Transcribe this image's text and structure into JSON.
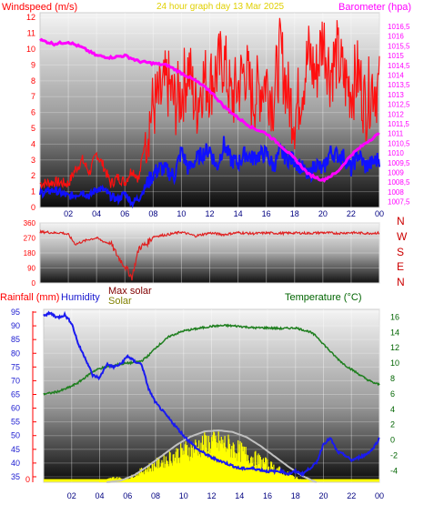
{
  "header": {
    "left_title": "Windspeed (m/s)",
    "center_title": "24 hour graph day   13 Mar 2025",
    "right_title": "Barometer (hpa)"
  },
  "colors": {
    "wind_avg": "#1010ff",
    "wind_gust": "#ff1010",
    "barometer": "#ff00ff",
    "direction": "#e02020",
    "humidity": "#1a1af0",
    "temperature": "#1f7f1f",
    "solar": "#ffff00",
    "max_solar": "#c0c0c0",
    "rainfall": "#ff2020",
    "title_yellow": "#e0d000",
    "rain_axis": "#ff0000",
    "temp_axis": "#006400"
  },
  "chart_data": [
    {
      "type": "line",
      "id": "wind-baro",
      "xlabel": "",
      "x_ticks": [
        "02",
        "04",
        "06",
        "08",
        "10",
        "12",
        "14",
        "16",
        "18",
        "20",
        "22",
        "00"
      ],
      "y_left_label": "Windspeed (m/s)",
      "y_left_ticks": [
        "12",
        "11",
        "10",
        "9",
        "8",
        "7",
        "6",
        "5",
        "4",
        "3",
        "2",
        "1",
        "0"
      ],
      "y_left_range": [
        0,
        12.3
      ],
      "y_right_label": "Barometer (hpa)",
      "y_right_ticks": [
        "1016,5",
        "1016",
        "1015,5",
        "1015",
        "1014,5",
        "1014",
        "1013,5",
        "1013",
        "1012,5",
        "1012",
        "1011,5",
        "1011",
        "1010,5",
        "1010",
        "1009,5",
        "1009",
        "1008,5",
        "1008",
        "1007,5"
      ],
      "y_right_range": [
        1007.2,
        1017.2
      ],
      "series": [
        {
          "key": "gust",
          "hours": [
            0,
            1,
            2,
            2.5,
            3,
            3.5,
            4,
            4.5,
            5,
            5.5,
            6,
            6.5,
            7,
            7.5,
            8,
            8.5,
            9,
            9.5,
            10,
            10.5,
            11,
            11.5,
            12,
            12.5,
            13,
            13.5,
            14,
            14.5,
            15,
            15.5,
            16,
            16.5,
            17,
            17.5,
            18,
            18.5,
            19,
            19.5,
            20,
            20.5,
            21,
            21.5,
            22,
            22.5,
            23,
            23.5,
            24
          ],
          "values": [
            1.5,
            1.6,
            1.5,
            2.4,
            3.0,
            2.2,
            3.4,
            2.6,
            1.5,
            1.9,
            1.6,
            2.4,
            1.8,
            4.8,
            6.4,
            6.8,
            7.9,
            6.6,
            7.2,
            8.9,
            6.3,
            8.1,
            7.9,
            8.6,
            9.4,
            6.8,
            7.6,
            8.8,
            6.9,
            7.5,
            8.1,
            6.8,
            9.9,
            7.2,
            5.8,
            7.6,
            9.6,
            8.3,
            10.9,
            8.6,
            9.6,
            8.1,
            7.5,
            8.5,
            6.4,
            7.9,
            7.4
          ]
        },
        {
          "key": "avg",
          "hours": [
            0,
            1,
            2,
            2.5,
            3,
            3.5,
            4,
            4.5,
            5,
            5.5,
            6,
            6.5,
            7,
            7.5,
            8,
            8.5,
            9,
            9.5,
            10,
            10.5,
            11,
            11.5,
            12,
            12.5,
            13,
            13.5,
            14,
            14.5,
            15,
            15.5,
            16,
            16.5,
            17,
            17.5,
            18,
            18.5,
            19,
            19.5,
            20,
            20.5,
            21,
            21.5,
            22,
            22.5,
            23,
            23.5,
            24
          ],
          "values": [
            0.9,
            1.1,
            0.7,
            0.8,
            1.0,
            0.7,
            1.2,
            1.1,
            0.7,
            0.5,
            0.9,
            0.3,
            0.6,
            1.4,
            2.1,
            2.5,
            2.3,
            2.0,
            3.6,
            2.4,
            3.0,
            3.4,
            3.7,
            2.5,
            4.0,
            3.0,
            2.8,
            3.4,
            3.1,
            3.3,
            3.4,
            2.6,
            3.5,
            3.1,
            3.0,
            2.5,
            1.9,
            2.8,
            2.3,
            3.5,
            3.3,
            3.2,
            2.4,
            3.4,
            2.6,
            2.8,
            3.1
          ]
        },
        {
          "key": "baro",
          "hours": [
            0,
            1,
            2,
            3,
            4,
            5,
            6,
            7,
            8,
            9,
            10,
            11,
            12,
            13,
            14,
            15,
            16,
            17,
            18,
            19,
            20,
            21,
            22,
            23,
            24
          ],
          "values": [
            1015.8,
            1015.6,
            1015.7,
            1015.4,
            1015.0,
            1014.9,
            1015.0,
            1014.7,
            1014.6,
            1014.5,
            1014.1,
            1013.7,
            1013.2,
            1012.4,
            1011.8,
            1011.3,
            1011.0,
            1010.4,
            1009.7,
            1008.9,
            1008.6,
            1009.0,
            1009.9,
            1010.5,
            1011.0
          ]
        }
      ]
    },
    {
      "type": "line",
      "id": "wind-direction",
      "y_left_ticks": [
        "360",
        "270",
        "180",
        "90",
        "0"
      ],
      "y_range": [
        0,
        360
      ],
      "y_right_ticks": [
        "N",
        "W",
        "S",
        "E",
        "N"
      ],
      "series": [
        {
          "key": "direction",
          "hours": [
            0,
            0.5,
            1,
            1.5,
            2,
            2.5,
            3,
            3.5,
            4,
            4.5,
            5,
            5.5,
            6,
            6.5,
            7,
            7.5,
            8,
            9,
            10,
            11,
            12,
            13,
            14,
            15,
            16,
            17,
            18,
            19,
            20,
            21,
            22,
            23,
            24
          ],
          "values": [
            305,
            305,
            300,
            302,
            290,
            232,
            248,
            262,
            270,
            248,
            236,
            160,
            100,
            34,
            212,
            232,
            278,
            290,
            305,
            282,
            300,
            290,
            302,
            296,
            300,
            298,
            300,
            298,
            302,
            298,
            302,
            298,
            300
          ]
        }
      ]
    },
    {
      "type": "line",
      "id": "humidity-temp-solar",
      "x_ticks": [
        "02",
        "04",
        "06",
        "08",
        "10",
        "12",
        "14",
        "16",
        "18",
        "20",
        "22",
        "00"
      ],
      "y_rain_label": "Rainfall (mm)",
      "y_hum_label": "Humidity",
      "y_solar_labels": [
        "Max solar",
        "Solar"
      ],
      "y_temp_label": "Temperature (°C)",
      "y_hum_ticks": [
        "95",
        "90",
        "85",
        "80",
        "75",
        "70",
        "65",
        "60",
        "55",
        "50",
        "45",
        "40",
        "35"
      ],
      "hum_range": [
        33,
        96
      ],
      "y_temp_ticks": [
        "16",
        "14",
        "12",
        "10",
        "8",
        "6",
        "4",
        "2",
        "0",
        "-2",
        "-4"
      ],
      "temp_range": [
        -5.5,
        17
      ],
      "series": [
        {
          "key": "humidity",
          "hours": [
            0,
            0.5,
            1,
            1.5,
            2,
            2.5,
            3,
            3.5,
            4,
            4.5,
            5,
            5.5,
            6,
            6.5,
            7,
            7.5,
            8,
            9,
            10,
            11,
            12,
            13,
            14,
            15,
            16,
            17,
            17.5,
            18,
            18.5,
            19,
            19.5,
            20,
            20.5,
            21,
            21.5,
            22,
            22.5,
            23,
            23.5,
            24
          ],
          "values": [
            94,
            94.5,
            93,
            94,
            91,
            83,
            78,
            72,
            71,
            76,
            75,
            76,
            79,
            77,
            76,
            67,
            62,
            56,
            50,
            45,
            42,
            40,
            38,
            38,
            37,
            37,
            36,
            37,
            36,
            38,
            40,
            47,
            49,
            44,
            43,
            41,
            42,
            43,
            45,
            49
          ]
        },
        {
          "key": "temperature",
          "hours": [
            0,
            0.5,
            1,
            1.5,
            2,
            2.5,
            3,
            3.5,
            4,
            4.5,
            5,
            5.5,
            6,
            6.5,
            7,
            7.5,
            8,
            9,
            10,
            11,
            12,
            13,
            14,
            15,
            16,
            17,
            18,
            19,
            19.5,
            20,
            20.5,
            21,
            21.5,
            22,
            22.5,
            23,
            23.5,
            24
          ],
          "values": [
            6,
            6.1,
            6.3,
            6.6,
            7,
            7.5,
            8.2,
            8.9,
            9.3,
            9.5,
            9.7,
            9.9,
            10,
            10.1,
            10.3,
            11,
            12,
            13.5,
            14.2,
            14.5,
            14.8,
            14.9,
            14.8,
            14.6,
            14.6,
            14.5,
            14.6,
            14.1,
            13.5,
            12.5,
            11.5,
            10.6,
            9.8,
            9.2,
            8.6,
            8,
            7.5,
            7.2
          ]
        },
        {
          "key": "solar_max",
          "hours": [
            4.5,
            5.5,
            6.5,
            7.5,
            8.5,
            9.5,
            10.5,
            11.5,
            12.5,
            13.5,
            14.5,
            15.5,
            16.5,
            17.5,
            18.5,
            19.5
          ],
          "values": [
            0,
            0.03,
            0.14,
            0.32,
            0.52,
            0.72,
            0.88,
            0.98,
            1,
            0.97,
            0.87,
            0.7,
            0.5,
            0.3,
            0.12,
            0
          ]
        },
        {
          "key": "solar",
          "hours": [
            4,
            5,
            6,
            7,
            8,
            9,
            10,
            11,
            12,
            13,
            14,
            15,
            16,
            17,
            18,
            19
          ],
          "values": [
            0.02,
            0.1,
            0.08,
            0.25,
            0.4,
            0.55,
            0.7,
            0.8,
            0.9,
            0.85,
            0.7,
            0.55,
            0.4,
            0.25,
            0.1,
            0
          ]
        }
      ],
      "rain_ticks": [
        "0"
      ]
    }
  ]
}
